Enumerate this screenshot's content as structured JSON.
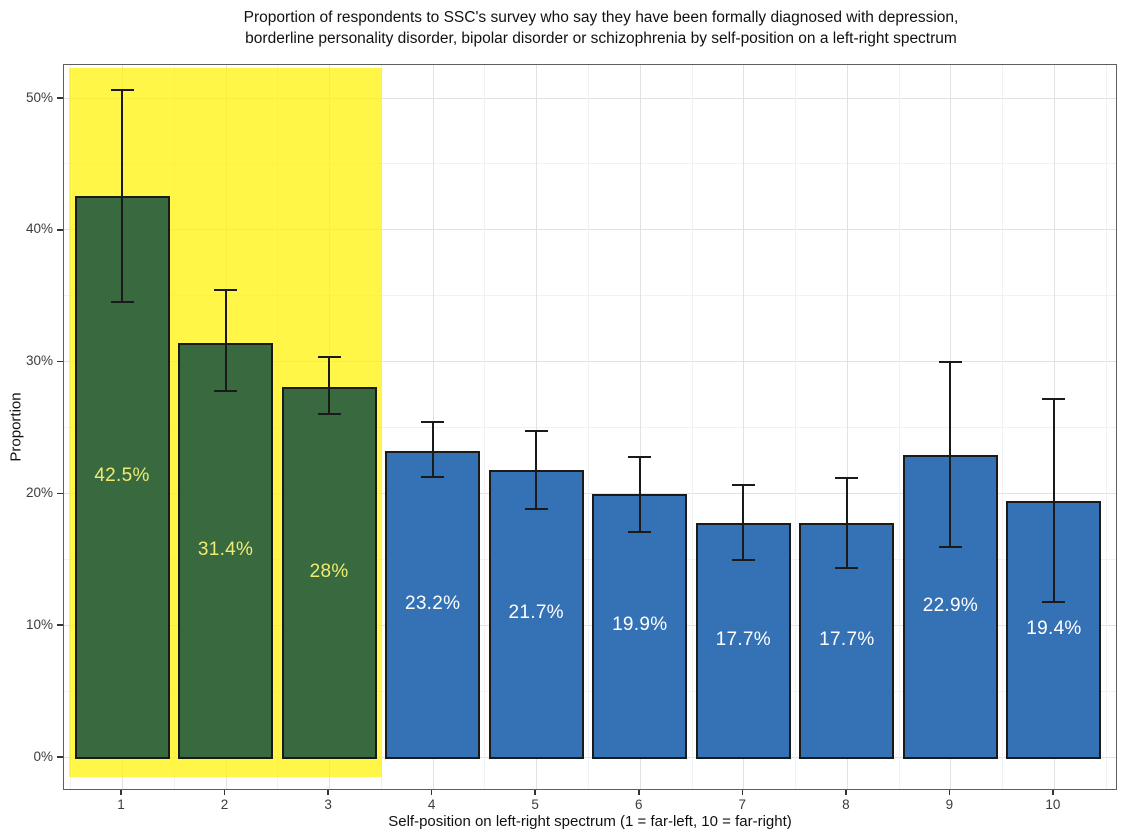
{
  "header": {
    "line1": "Proportion of respondents to SSC's survey who say they have been formally diagnosed with depression,",
    "line2": "borderline personality disorder, bipolar disorder or schizophrenia by self-position on a left-right spectrum"
  },
  "chart_data": {
    "type": "bar",
    "title": "Proportion of respondents to SSC's survey who say they have been formally diagnosed with depression, borderline personality disorder, bipolar disorder or schizophrenia by self-position on a left-right spectrum",
    "xlabel": "Self-position on left-right spectrum (1 = far-left, 10 = far-right)",
    "ylabel": "Proportion",
    "categories": [
      "1",
      "2",
      "3",
      "4",
      "5",
      "6",
      "7",
      "8",
      "9",
      "10"
    ],
    "values": [
      42.5,
      31.4,
      28,
      23.2,
      21.7,
      19.9,
      17.7,
      17.7,
      22.9,
      19.4
    ],
    "bar_labels": [
      "42.5%",
      "31.4%",
      "28%",
      "23.2%",
      "21.7%",
      "19.9%",
      "17.7%",
      "17.7%",
      "22.9%",
      "19.4%"
    ],
    "error_low": [
      34.5,
      27.7,
      26.0,
      21.2,
      18.8,
      17.0,
      14.9,
      14.3,
      15.9,
      11.7
    ],
    "error_high": [
      50.6,
      35.4,
      30.3,
      25.4,
      24.7,
      22.7,
      20.6,
      21.1,
      29.9,
      27.1
    ],
    "groups": [
      "left",
      "left",
      "left",
      "right",
      "right",
      "right",
      "right",
      "right",
      "right",
      "right"
    ],
    "y_tick_labels": [
      "0%",
      "10%",
      "20%",
      "30%",
      "40%",
      "50%"
    ],
    "y_tick_values": [
      0,
      10,
      20,
      30,
      40,
      50
    ],
    "ylim": [
      -2.5,
      52.6
    ],
    "grid": "major and minor, light gray",
    "legend": "none",
    "highlight": {
      "categories": [
        "1",
        "2",
        "3"
      ],
      "x_range": [
        0.5,
        3.5
      ],
      "color": "#FFF200",
      "opacity": 0.72
    },
    "colors": {
      "left": "#39693F",
      "right": "#3572B5",
      "bar_border": "#1A1A1A",
      "error_bar": "#1A1A1A",
      "label_on_left": "#EFEB72",
      "label_on_right": "#FFFFFF"
    }
  }
}
